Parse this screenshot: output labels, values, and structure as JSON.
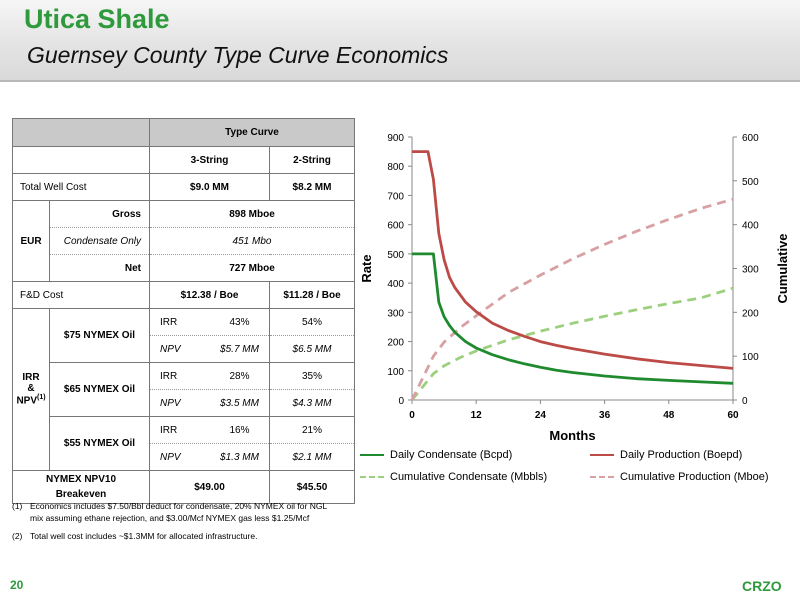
{
  "header": {
    "title": "Utica Shale",
    "subtitle": "Guernsey County Type Curve Economics"
  },
  "table": {
    "type_curve_label": "Type Curve",
    "col_3string": "3-String",
    "col_2string": "2-String",
    "rows": {
      "total_well_cost": {
        "label": "Total Well Cost",
        "v3": "$9.0 MM",
        "v2": "$8.2 MM"
      },
      "eur": {
        "label": "EUR",
        "gross_label": "Gross",
        "gross_value": "898 Mboe",
        "cond_label": "Condensate Only",
        "cond_value": "451 Mbo",
        "net_label": "Net",
        "net_value": "727 Mboe"
      },
      "fd_cost": {
        "label": "F&D Cost",
        "v3": "$12.38 / Boe",
        "v2": "$11.28 / Boe"
      },
      "irr_npv": {
        "label_irr": "IRR",
        "label_amp": "&",
        "label_npv": "NPV",
        "label_sup": "(1)",
        "cases": [
          {
            "label": "$75 NYMEX Oil",
            "irr3": "43%",
            "irr2": "54%",
            "npv3": "$5.7 MM",
            "npv2": "$6.5 MM"
          },
          {
            "label": "$65 NYMEX Oil",
            "irr3": "28%",
            "irr2": "35%",
            "npv3": "$3.5 MM",
            "npv2": "$4.3 MM"
          },
          {
            "label": "$55 NYMEX Oil",
            "irr3": "16%",
            "irr2": "21%",
            "npv3": "$1.3 MM",
            "npv2": "$2.1 MM"
          }
        ],
        "irr_tag": "IRR",
        "npv_tag": "NPV"
      },
      "breakeven": {
        "label_line1": "NYMEX NPV10",
        "label_line2": "Breakeven",
        "v3": "$49.00",
        "v2": "$45.50"
      }
    }
  },
  "footnotes": [
    {
      "num": "(1)",
      "text": "Economics includes $7.50/Bbl deduct for condensate, 20% NYMEX oil for NGL mix assuming ethane rejection, and $3.00/Mcf NYMEX gas less $1.25/Mcf"
    },
    {
      "num": "(2)",
      "text": "Total well cost includes ~$1.3MM for allocated infrastructure."
    }
  ],
  "footer": {
    "page": "20",
    "logo": "CRZO"
  },
  "chart_data": {
    "type": "line",
    "xlabel": "Months",
    "ylabel": "Rate",
    "y2label": "Cumulative",
    "xlim": [
      0,
      60
    ],
    "ylim": [
      0,
      900
    ],
    "y2lim": [
      0,
      600
    ],
    "xticks": [
      "0",
      "12",
      "24",
      "36",
      "48",
      "60"
    ],
    "yticks": [
      "0",
      "100",
      "200",
      "300",
      "400",
      "500",
      "600",
      "700",
      "800",
      "900"
    ],
    "y2ticks": [
      "0",
      "100",
      "200",
      "300",
      "400",
      "500",
      "600"
    ],
    "grid": false,
    "legend_position": "bottom",
    "series": [
      {
        "name": "Daily Condensate (Bcpd)",
        "axis": "left",
        "style": "solid",
        "color": "#1f8a2e",
        "x": [
          0,
          1,
          2,
          3,
          4,
          5,
          6,
          7,
          8,
          10,
          12,
          15,
          18,
          21,
          24,
          27,
          30,
          36,
          42,
          48,
          54,
          60
        ],
        "y": [
          500,
          500,
          500,
          500,
          500,
          335,
          285,
          255,
          232,
          200,
          178,
          155,
          138,
          124,
          112,
          102,
          94,
          82,
          73,
          67,
          62,
          57
        ]
      },
      {
        "name": "Daily Production (Boepd)",
        "axis": "left",
        "style": "solid",
        "color": "#bc4b47",
        "x": [
          0,
          1,
          2,
          3,
          4,
          5,
          6,
          7,
          8,
          10,
          12,
          15,
          18,
          21,
          24,
          27,
          30,
          36,
          42,
          48,
          54,
          60
        ],
        "y": [
          850,
          850,
          850,
          850,
          755,
          570,
          480,
          420,
          385,
          335,
          302,
          263,
          238,
          218,
          200,
          187,
          176,
          157,
          141,
          128,
          118,
          108
        ]
      },
      {
        "name": "Cumulative Condensate (Mbbls)",
        "axis": "right",
        "style": "dashed",
        "color": "#9ccf7e",
        "x": [
          0,
          2,
          4,
          6,
          9,
          12,
          18,
          24,
          30,
          36,
          42,
          48,
          54,
          60
        ],
        "y": [
          0,
          30,
          60,
          78,
          97,
          112,
          137,
          157,
          175,
          191,
          206,
          220,
          233,
          255
        ]
      },
      {
        "name": "Cumulative Production (Mboe)",
        "axis": "right",
        "style": "dashed",
        "color": "#d7a1a4",
        "x": [
          0,
          2,
          4,
          6,
          9,
          12,
          18,
          24,
          30,
          36,
          42,
          48,
          54,
          60
        ],
        "y": [
          0,
          50,
          100,
          132,
          165,
          192,
          245,
          285,
          322,
          355,
          385,
          412,
          437,
          458
        ]
      }
    ]
  }
}
